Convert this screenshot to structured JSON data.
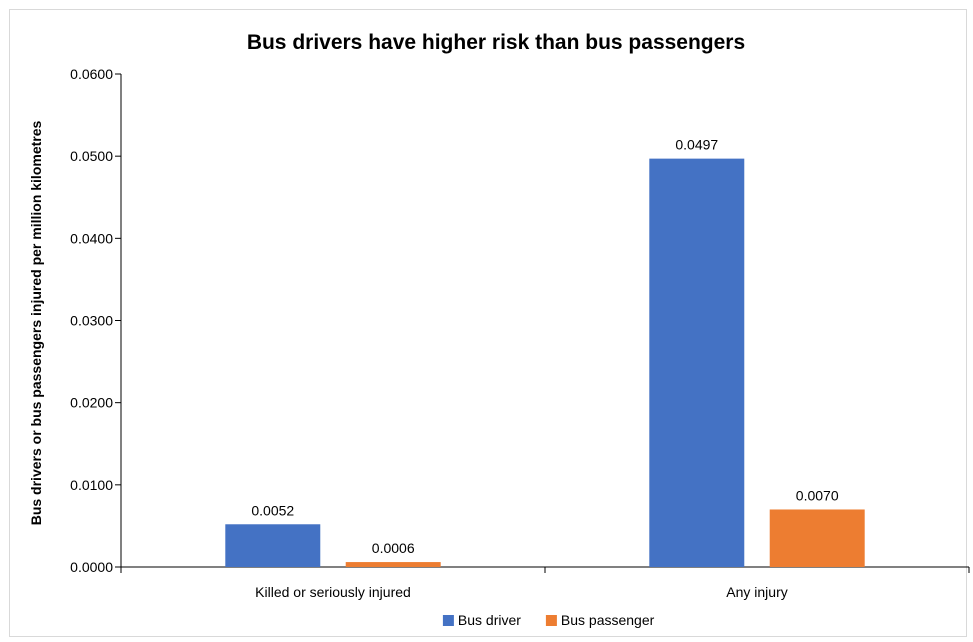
{
  "chart_data": {
    "type": "bar",
    "title": "Bus drivers have higher risk than bus passengers",
    "xlabel": "",
    "ylabel": "Bus drivers or bus passengers injured per million kilometres",
    "categories": [
      "Killed or seriously injured",
      "Any injury"
    ],
    "series": [
      {
        "name": "Bus driver",
        "color": "#4472C4",
        "values": [
          0.0052,
          0.0497
        ],
        "labels": [
          "0.0052",
          "0.0497"
        ]
      },
      {
        "name": "Bus passenger",
        "color": "#ED7D31",
        "values": [
          0.0006,
          0.007
        ],
        "labels": [
          "0.0006",
          "0.0070"
        ]
      }
    ],
    "ylim": [
      0,
      0.06
    ],
    "yticks": [
      0,
      0.01,
      0.02,
      0.03,
      0.04,
      0.05,
      0.06
    ],
    "ytick_labels": [
      "0.0000",
      "0.0100",
      "0.0200",
      "0.0300",
      "0.0400",
      "0.0500",
      "0.0600"
    ],
    "grid": false,
    "legend_position": "bottom"
  }
}
